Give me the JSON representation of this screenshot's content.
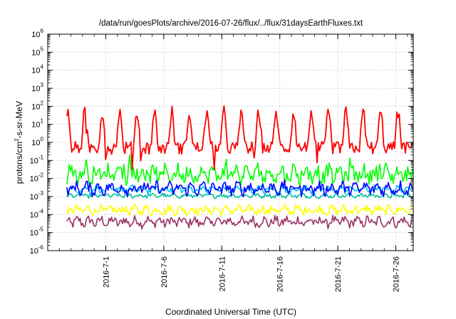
{
  "chart_data": {
    "type": "line",
    "title": "/data/run/goesPlots/archive/2016-07-26/flux/../flux/31daysEarthFluxes.txt",
    "xlabel": "Coordinated Universal Time (UTC)",
    "ylabel": {
      "base": "protons/cm",
      "sup": "2",
      "rest": "-s-sr-MeV"
    },
    "x_range": [
      "2016-06-26",
      "2016-07-27T12:00"
    ],
    "x_ticks": [
      "2016-7-1",
      "2016-7-6",
      "2016-7-11",
      "2016-7-16",
      "2016-7-21",
      "2016-7-26"
    ],
    "y_scale": "log",
    "ylim": [
      1e-06,
      1000000
    ],
    "y_tick_exponents": [
      "-6",
      "-5",
      "-4",
      "-3",
      "-2",
      "-1",
      "0",
      "1",
      "2",
      "3",
      "4",
      "5",
      "6"
    ],
    "y_tick_base": "10",
    "grid": true,
    "legend": "none",
    "series": [
      {
        "color": "#ff0000",
        "log_center": 0.2,
        "log_amplitude": 1.0,
        "log_noise": 0.35,
        "period_days": 1.5
      },
      {
        "color": "#00ff00",
        "log_center": -1.75,
        "log_amplitude": 0.45,
        "log_noise": 0.4,
        "period_days": 1.0
      },
      {
        "color": "#00c0ff",
        "log_center": -2.6,
        "log_amplitude": 0.2,
        "log_noise": 0.15,
        "period_days": 1.0
      },
      {
        "color": "#0000ff",
        "log_center": -2.55,
        "log_amplitude": 0.3,
        "log_noise": 0.3,
        "period_days": 1.0
      },
      {
        "color": "#00c0a0",
        "log_center": -2.95,
        "log_amplitude": 0.1,
        "log_noise": 0.1,
        "period_days": 1.0
      },
      {
        "color": "#ffff00",
        "log_center": -3.75,
        "log_amplitude": 0.2,
        "log_noise": 0.22,
        "period_days": 1.0
      },
      {
        "color": "#993366",
        "log_center": -4.4,
        "log_amplitude": 0.25,
        "log_noise": 0.25,
        "period_days": 1.0
      }
    ]
  }
}
